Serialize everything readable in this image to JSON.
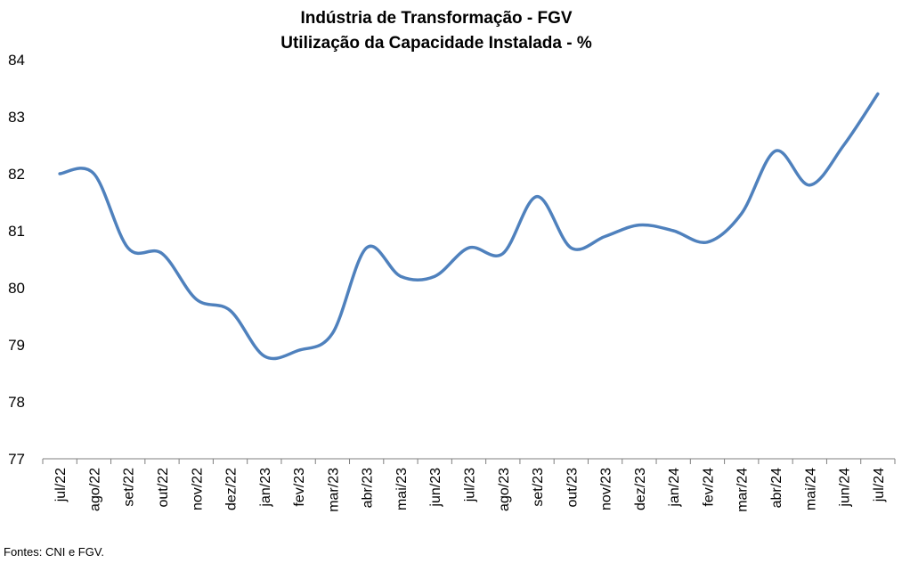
{
  "chart_data": {
    "type": "line",
    "title": "Indústria de Transformação - FGV",
    "subtitle": "Utilização da Capacidade Instalada - %",
    "categories": [
      "jul/22",
      "ago/22",
      "set/22",
      "out/22",
      "nov/22",
      "dez/22",
      "jan/23",
      "fev/23",
      "mar/23",
      "abr/23",
      "mai/23",
      "jun/23",
      "jul/23",
      "ago/23",
      "set/23",
      "out/23",
      "nov/23",
      "dez/23",
      "jan/24",
      "fev/24",
      "mar/24",
      "abr/24",
      "mai/24",
      "jun/24",
      "jul/24"
    ],
    "series": [
      {
        "values": [
          82.0,
          82.0,
          80.7,
          80.6,
          79.8,
          79.6,
          78.8,
          78.9,
          79.2,
          80.7,
          80.2,
          80.2,
          80.7,
          80.6,
          81.6,
          80.7,
          80.9,
          81.1,
          81.0,
          80.8,
          81.3,
          82.4,
          81.8,
          82.5,
          83.4
        ],
        "color": "#4f81bd"
      }
    ],
    "ylim": [
      77,
      84
    ],
    "yticks": [
      77,
      78,
      79,
      80,
      81,
      82,
      83,
      84
    ],
    "grid": false,
    "legend": "none"
  },
  "footer": {
    "source": "Fontes: CNI e FGV."
  }
}
